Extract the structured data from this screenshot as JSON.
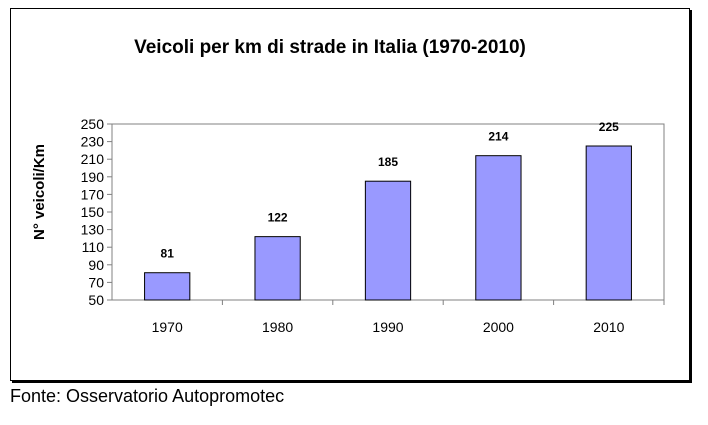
{
  "chart_data": {
    "type": "bar",
    "title": "Veicoli per km di strade in Italia (1970-2010)",
    "xlabel": "",
    "ylabel": "N° veicoli/Km",
    "categories": [
      "1970",
      "1980",
      "1990",
      "2000",
      "2010"
    ],
    "values": [
      81,
      122,
      185,
      214,
      225
    ],
    "data_labels": [
      "81",
      "122",
      "185",
      "214",
      "225"
    ],
    "ylim": [
      50,
      250
    ],
    "yticks": [
      50,
      70,
      90,
      110,
      130,
      150,
      170,
      190,
      210,
      230,
      250
    ],
    "bar_color": "#9999ff",
    "bar_edge_color": "#000000",
    "grid": false,
    "legend": "none"
  },
  "source": "Fonte: Osservatorio Autopromotec"
}
